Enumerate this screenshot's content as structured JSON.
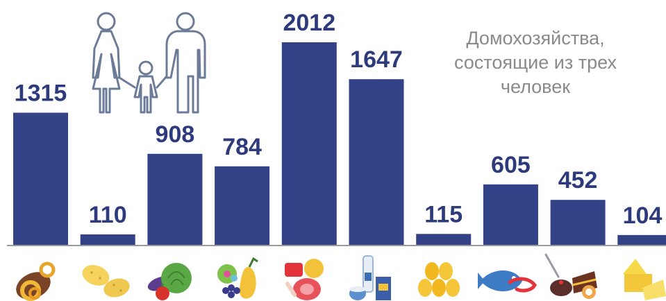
{
  "chart_data": {
    "type": "bar",
    "title_lines": [
      "Домохозяйства,",
      "состоящие из трех",
      "человек"
    ],
    "values": [
      1315,
      110,
      908,
      784,
      2012,
      1647,
      115,
      605,
      452,
      104
    ],
    "data_labels": [
      "1315",
      "110",
      "908",
      "784",
      "2012",
      "1647",
      "115",
      "605",
      "452",
      "104"
    ],
    "category_icons": [
      "bread-icon",
      "potato-icon",
      "vegetables-icon",
      "fruit-icon",
      "meat-icon",
      "dairy-icon",
      "eggs-icon",
      "fish-icon",
      "sweets-icon",
      "butter-icon"
    ],
    "ylim": [
      0,
      2012
    ],
    "grid": false,
    "legend": "none",
    "bar_color": "#334287",
    "label_color": "#2d3a7c"
  },
  "decoration": {
    "family_icon": "family-icon"
  }
}
